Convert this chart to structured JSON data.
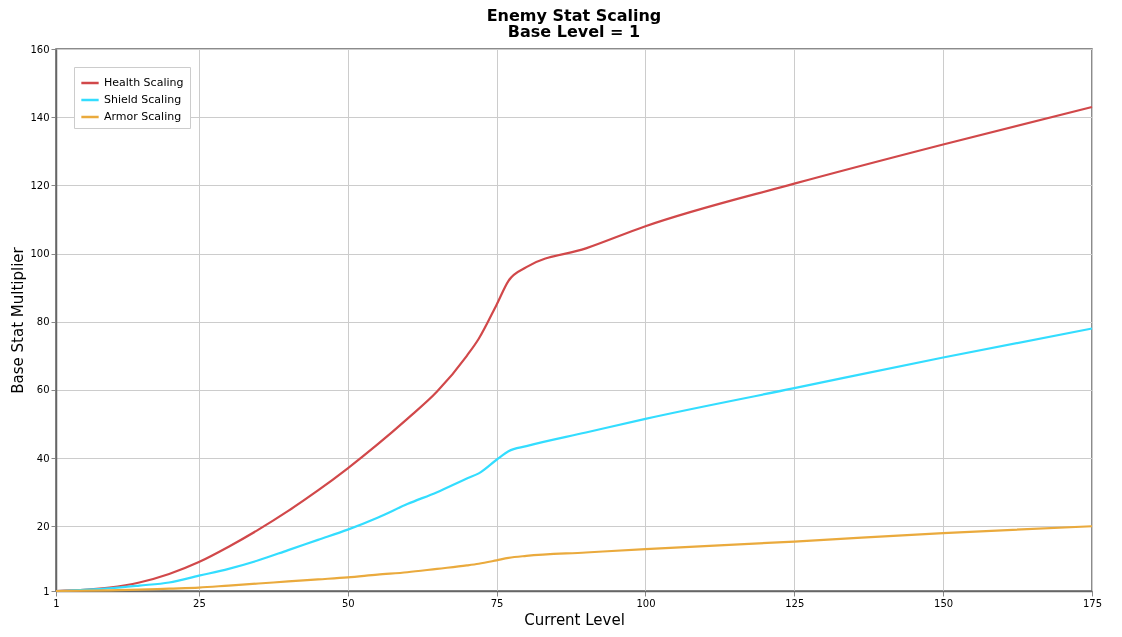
{
  "chart_data": {
    "type": "line",
    "title": "Enemy Stat Scaling",
    "subtitle": "Base Level = 1",
    "xlabel": "Current Level",
    "ylabel": "Base Stat Multiplier",
    "x": [
      1,
      10,
      15,
      20,
      25,
      30,
      35,
      40,
      45,
      50,
      55,
      60,
      65,
      70,
      72,
      75,
      77,
      80,
      90,
      100,
      125,
      150,
      175
    ],
    "series": [
      {
        "name": "Health Scaling",
        "color": "#d1484a",
        "values": [
          1,
          2,
          3.5,
          6,
          9.5,
          14,
          19,
          24.5,
          30.5,
          37,
          44,
          51.5,
          59.5,
          70,
          75,
          85,
          92,
          96,
          101.5,
          108,
          120.5,
          132,
          143
        ]
      },
      {
        "name": "Shield Scaling",
        "color": "#33ddff",
        "values": [
          1,
          1.8,
          2.6,
          3.5,
          5.5,
          7.5,
          10,
          13,
          16,
          19,
          22.5,
          26.5,
          30,
          34,
          35.5,
          39.5,
          42,
          43.5,
          47.5,
          51.5,
          60.5,
          69.5,
          78
        ]
      },
      {
        "name": "Armor Scaling",
        "color": "#eaaa3d",
        "values": [
          1,
          1.2,
          1.4,
          1.7,
          2,
          2.6,
          3.2,
          3.8,
          4.4,
          5,
          5.8,
          6.5,
          7.5,
          8.5,
          9,
          10,
          10.7,
          11.3,
          12.3,
          13.3,
          15.5,
          18,
          20
        ]
      }
    ],
    "xlim": [
      1,
      175
    ],
    "xticks": [
      1,
      25,
      50,
      75,
      100,
      125,
      150,
      175
    ],
    "ylim": [
      1,
      160
    ],
    "yticks": [
      1,
      20,
      40,
      60,
      80,
      100,
      120,
      140,
      160
    ],
    "grid": true,
    "legend": "top left",
    "marker": "none",
    "line_style": "solid"
  }
}
